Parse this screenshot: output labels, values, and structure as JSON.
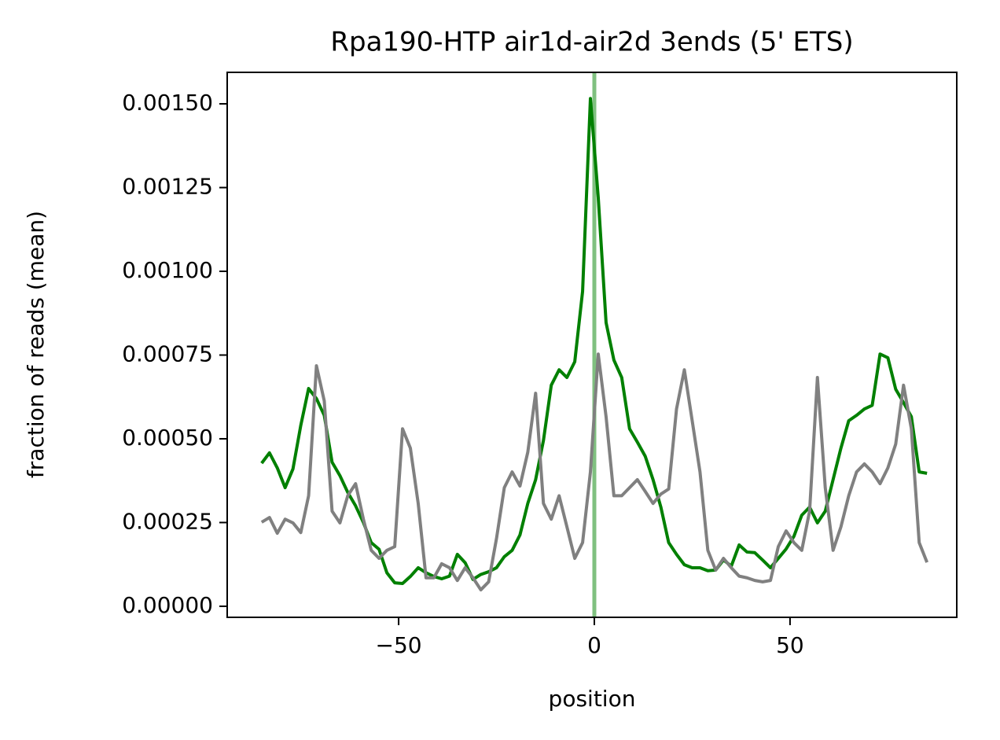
{
  "chart_data": {
    "type": "line",
    "title": "Rpa190-HTP air1d-air2d 3ends (5' ETS)",
    "xlabel": "position",
    "ylabel": "fraction of reads (mean)",
    "x": [
      -85,
      -83,
      -81,
      -79,
      -77,
      -75,
      -73,
      -71,
      -69,
      -67,
      -65,
      -63,
      -61,
      -59,
      -57,
      -55,
      -53,
      -51,
      -49,
      -47,
      -45,
      -43,
      -41,
      -39,
      -37,
      -35,
      -33,
      -31,
      -29,
      -27,
      -25,
      -23,
      -21,
      -19,
      -17,
      -15,
      -13,
      -11,
      -9,
      -7,
      -5,
      -3,
      -1,
      1,
      3,
      5,
      7,
      9,
      11,
      13,
      15,
      17,
      19,
      21,
      23,
      25,
      27,
      29,
      31,
      33,
      35,
      37,
      39,
      41,
      43,
      45,
      47,
      49,
      51,
      53,
      55,
      57,
      59,
      61,
      63,
      65,
      67,
      69,
      71,
      73,
      75,
      77,
      79,
      81,
      83,
      85
    ],
    "series": [
      {
        "color": "#008000",
        "values": [
          0.000427,
          0.000458,
          0.000413,
          0.000354,
          0.00041,
          0.00054,
          0.00065,
          0.00062,
          0.00057,
          0.00043,
          0.00039,
          0.00034,
          0.0003,
          0.00025,
          0.00019,
          0.00017,
          0.0001,
          7e-05,
          6.8e-05,
          8.9e-05,
          0.000115,
          0.0001,
          8.9e-05,
          8.2e-05,
          9e-05,
          0.000155,
          0.00013,
          8e-05,
          9.5e-05,
          0.000103,
          0.000115,
          0.000148,
          0.000167,
          0.000213,
          0.000307,
          0.000378,
          0.000495,
          0.00066,
          0.000706,
          0.000683,
          0.00073,
          0.00094,
          0.001516,
          0.00122,
          0.000847,
          0.000735,
          0.000683,
          0.00053,
          0.00049,
          0.000448,
          0.000378,
          0.000296,
          0.00019,
          0.000155,
          0.000124,
          0.000115,
          0.000115,
          0.000106,
          0.000108,
          0.000138,
          0.00012,
          0.000183,
          0.000162,
          0.00016,
          0.000138,
          0.000115,
          0.000143,
          0.000171,
          0.000209,
          0.000272,
          0.000296,
          0.000249,
          0.000284,
          0.000378,
          0.000472,
          0.000554,
          0.00057,
          0.000589,
          0.0006,
          0.000753,
          0.000742,
          0.000648,
          0.000608,
          0.000566,
          0.000401,
          0.000397
        ]
      },
      {
        "color": "#808080",
        "values": [
          0.000251,
          0.000265,
          0.000218,
          0.00026,
          0.000249,
          0.00022,
          0.00033,
          0.000718,
          0.000613,
          0.000284,
          0.000249,
          0.00033,
          0.000366,
          0.00026,
          0.000167,
          0.000143,
          0.000167,
          0.000178,
          0.00053,
          0.000472,
          0.000307,
          8.5e-05,
          8.5e-05,
          0.000127,
          0.000115,
          7.7e-05,
          0.000115,
          8.5e-05,
          4.9e-05,
          7.3e-05,
          0.000202,
          0.000354,
          0.000401,
          0.000359,
          0.00046,
          0.000636,
          0.000307,
          0.00026,
          0.00033,
          0.000237,
          0.000143,
          0.00019,
          0.000401,
          0.000753,
          0.000566,
          0.00033,
          0.00033,
          0.000354,
          0.000378,
          0.000343,
          0.000307,
          0.000335,
          0.00035,
          0.000589,
          0.000706,
          0.000554,
          0.000401,
          0.000167,
          0.000108,
          0.000143,
          0.000115,
          9e-05,
          8.5e-05,
          7.7e-05,
          7.3e-05,
          7.7e-05,
          0.000178,
          0.000225,
          0.00019,
          0.000167,
          0.000284,
          0.000683,
          0.000354,
          0.000167,
          0.000237,
          0.00033,
          0.000401,
          0.000425,
          0.000401,
          0.000366,
          0.000413,
          0.000484,
          0.00066,
          0.00053,
          0.00019,
          0.000131
        ]
      }
    ],
    "vline": {
      "x": 0,
      "color": "#80c080"
    },
    "xlim": [
      -93.8,
      92.6
    ],
    "ylim": [
      -3.3e-05,
      0.001594
    ],
    "xticks": [
      {
        "value": -50,
        "label": "−50"
      },
      0,
      50
    ],
    "yticks": [
      {
        "value": 0,
        "label": "0.00000"
      },
      {
        "value": 0.00025,
        "label": "0.00025"
      },
      {
        "value": 0.0005,
        "label": "0.00050"
      },
      {
        "value": 0.00075,
        "label": "0.00075"
      },
      {
        "value": 0.001,
        "label": "0.00100"
      },
      {
        "value": 0.00125,
        "label": "0.00125"
      },
      {
        "value": 0.0015,
        "label": "0.00150"
      }
    ]
  }
}
